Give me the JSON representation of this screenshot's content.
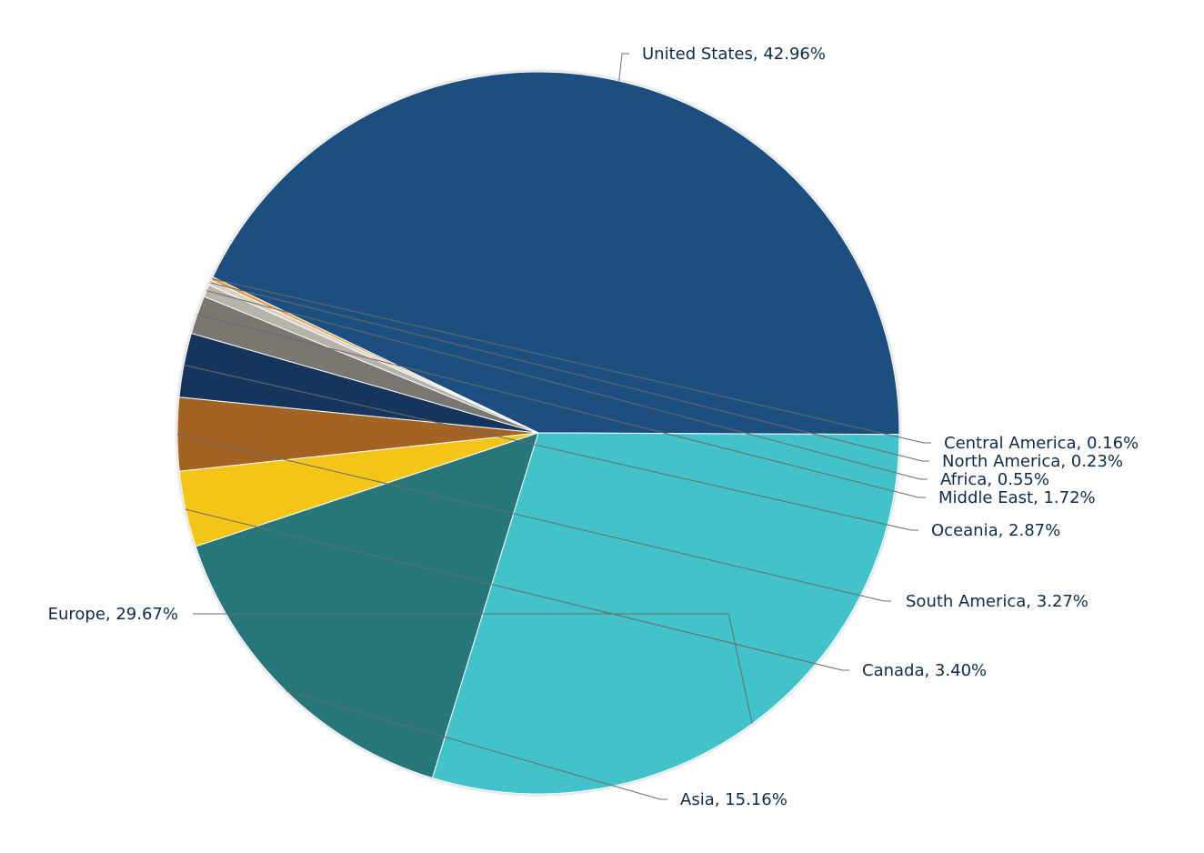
{
  "chart_data": {
    "type": "pie",
    "data_labels": true,
    "legend": "none",
    "slices": [
      {
        "label": "United States",
        "value": 42.96,
        "display": "42.96%",
        "color": "#1f5080"
      },
      {
        "label": "Central America",
        "value": 0.16,
        "display": "0.16%",
        "color": "#f09a3e"
      },
      {
        "label": "North America",
        "value": 0.23,
        "display": "0.23%",
        "color": "#d8d2c6"
      },
      {
        "label": "Africa",
        "value": 0.55,
        "display": "0.55%",
        "color": "#b7b2aa"
      },
      {
        "label": "Middle East",
        "value": 1.72,
        "display": "1.72%",
        "color": "#7a766f"
      },
      {
        "label": "Oceania",
        "value": 2.87,
        "display": "2.87%",
        "color": "#12345d"
      },
      {
        "label": "South America",
        "value": 3.27,
        "display": "3.27%",
        "color": "#a36324"
      },
      {
        "label": "Canada",
        "value": 3.4,
        "display": "3.40%",
        "color": "#f2c518"
      },
      {
        "label": "Asia",
        "value": 15.16,
        "display": "15.16%",
        "color": "#27767a"
      },
      {
        "label": "Europe",
        "value": 29.67,
        "display": "29.67%",
        "color": "#42c2c9"
      }
    ]
  }
}
